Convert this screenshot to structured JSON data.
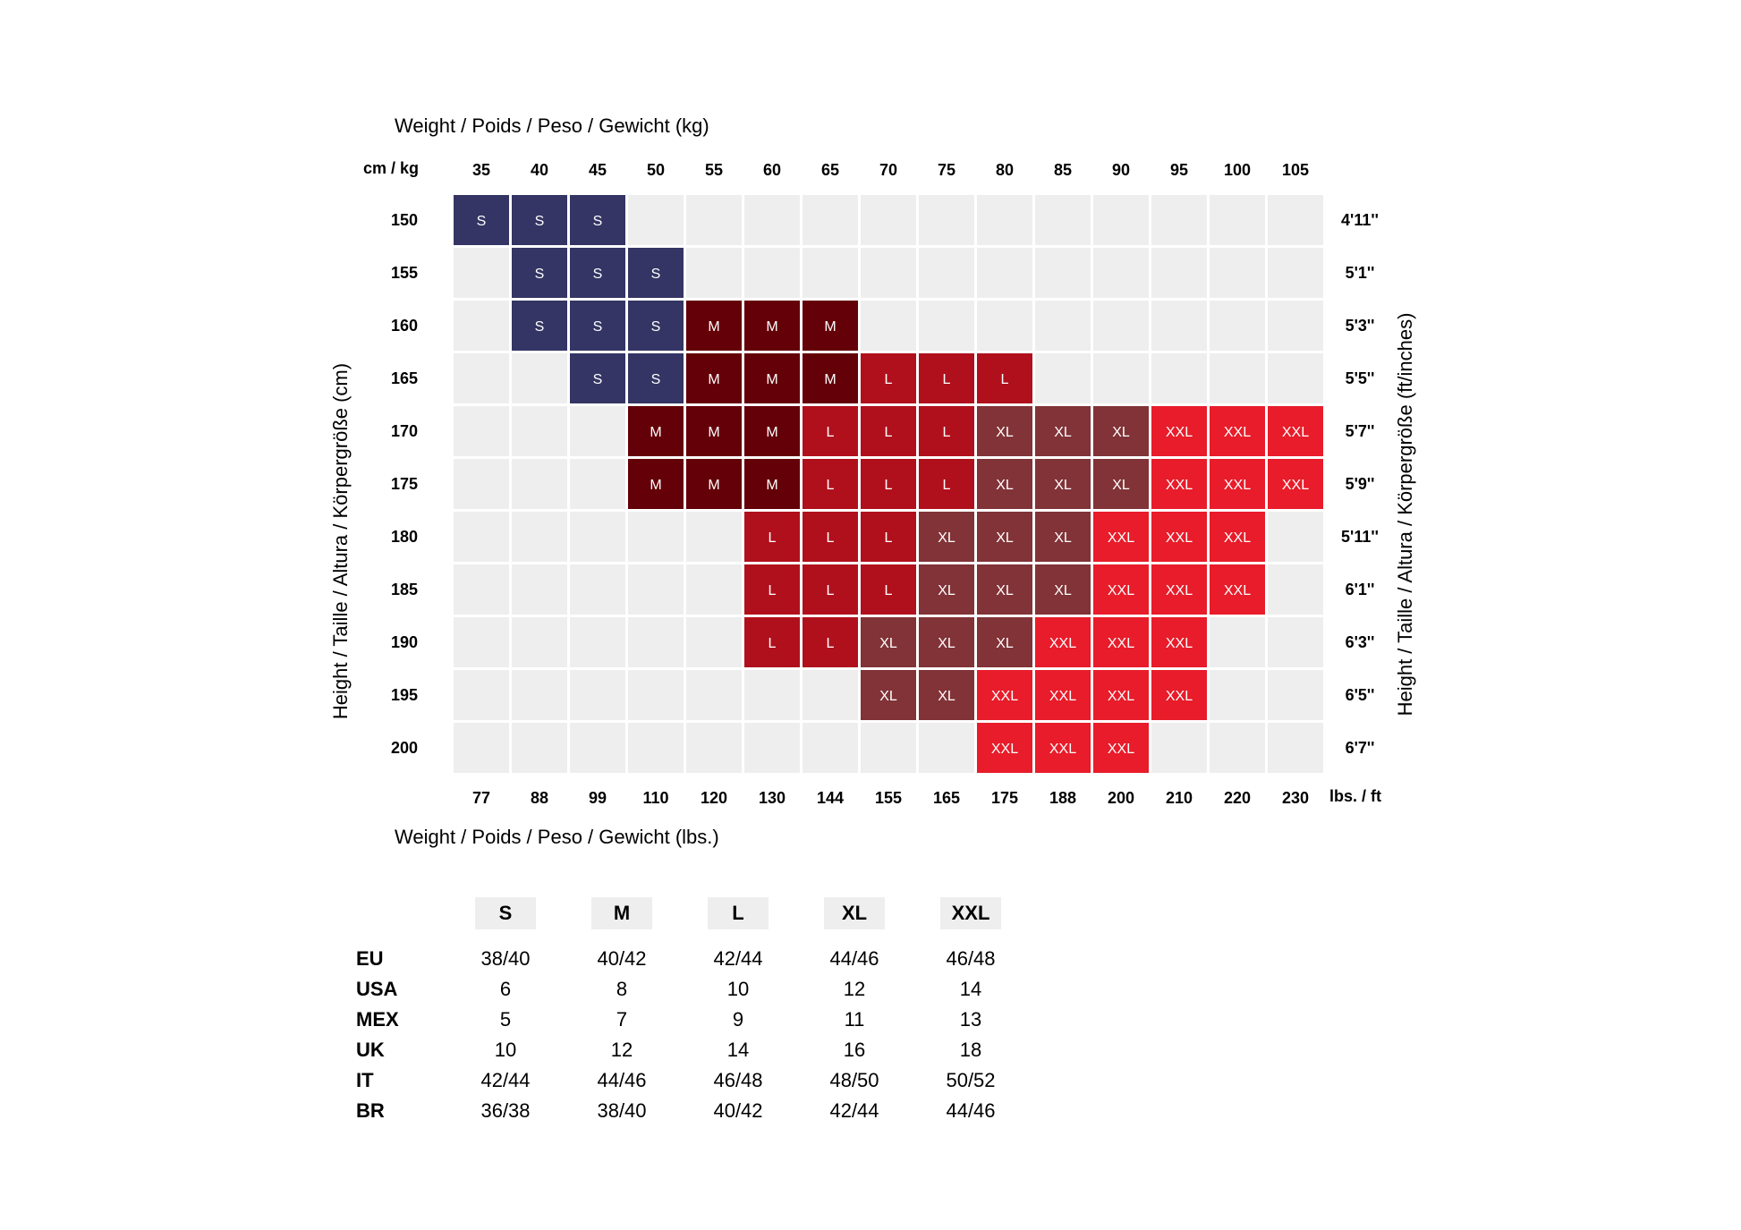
{
  "chart_data": {
    "type": "heatmap",
    "title_top": "Weight / Poids / Peso / Gewicht (kg)",
    "title_bottom": "Weight / Poids / Peso / Gewicht (lbs.)",
    "ylabel_left": "Height / Taille / Altura / Körpergröße (cm)",
    "ylabel_right": "Height / Taille / Altura / Körpergröße (ft/inches)",
    "corner_top": "cm / kg",
    "corner_bottom": "lbs. / ft",
    "x_kg": [
      "35",
      "40",
      "45",
      "50",
      "55",
      "60",
      "65",
      "70",
      "75",
      "80",
      "85",
      "90",
      "95",
      "100",
      "105"
    ],
    "x_lbs": [
      "77",
      "88",
      "99",
      "110",
      "120",
      "130",
      "144",
      "155",
      "165",
      "175",
      "188",
      "200",
      "210",
      "220",
      "230"
    ],
    "y_cm": [
      "150",
      "155",
      "160",
      "165",
      "170",
      "175",
      "180",
      "185",
      "190",
      "195",
      "200"
    ],
    "y_ft": [
      "4'11''",
      "5'1''",
      "5'3''",
      "5'5''",
      "5'7''",
      "5'9''",
      "5'11''",
      "6'1''",
      "6'3''",
      "6'5''",
      "6'7''"
    ],
    "grid": [
      [
        "S",
        "S",
        "S",
        "",
        "",
        "",
        "",
        "",
        "",
        "",
        "",
        "",
        "",
        "",
        ""
      ],
      [
        "",
        "S",
        "S",
        "S",
        "",
        "",
        "",
        "",
        "",
        "",
        "",
        "",
        "",
        "",
        ""
      ],
      [
        "",
        "S",
        "S",
        "S",
        "M",
        "M",
        "M",
        "",
        "",
        "",
        "",
        "",
        "",
        "",
        ""
      ],
      [
        "",
        "",
        "S",
        "S",
        "M",
        "M",
        "M",
        "L",
        "L",
        "L",
        "",
        "",
        "",
        "",
        ""
      ],
      [
        "",
        "",
        "",
        "M",
        "M",
        "M",
        "L",
        "L",
        "L",
        "XL",
        "XL",
        "XL",
        "XXL",
        "XXL",
        "XXL"
      ],
      [
        "",
        "",
        "",
        "M",
        "M",
        "M",
        "L",
        "L",
        "L",
        "XL",
        "XL",
        "XL",
        "XXL",
        "XXL",
        "XXL"
      ],
      [
        "",
        "",
        "",
        "",
        "",
        "L",
        "L",
        "L",
        "XL",
        "XL",
        "XL",
        "XXL",
        "XXL",
        "XXL",
        ""
      ],
      [
        "",
        "",
        "",
        "",
        "",
        "L",
        "L",
        "L",
        "XL",
        "XL",
        "XL",
        "XXL",
        "XXL",
        "XXL",
        ""
      ],
      [
        "",
        "",
        "",
        "",
        "",
        "L",
        "L",
        "XL",
        "XL",
        "XL",
        "XXL",
        "XXL",
        "XXL",
        "",
        ""
      ],
      [
        "",
        "",
        "",
        "",
        "",
        "",
        "",
        "XL",
        "XL",
        "XXL",
        "XXL",
        "XXL",
        "XXL",
        "",
        ""
      ],
      [
        "",
        "",
        "",
        "",
        "",
        "",
        "",
        "",
        "",
        "XXL",
        "XXL",
        "XXL",
        "",
        "",
        ""
      ]
    ],
    "colors": {
      "S": "#343564",
      "M": "#640008",
      "L": "#b0101c",
      "XL": "#813337",
      "XXL": "#e81c2a",
      "empty": "#eeeeee"
    }
  },
  "conversion": {
    "sizes": [
      "S",
      "M",
      "L",
      "XL",
      "XXL"
    ],
    "rows": [
      {
        "label": "EU",
        "values": [
          "38/40",
          "40/42",
          "42/44",
          "44/46",
          "46/48"
        ]
      },
      {
        "label": "USA",
        "values": [
          "6",
          "8",
          "10",
          "12",
          "14"
        ]
      },
      {
        "label": "MEX",
        "values": [
          "5",
          "7",
          "9",
          "11",
          "13"
        ]
      },
      {
        "label": "UK",
        "values": [
          "10",
          "12",
          "14",
          "16",
          "18"
        ]
      },
      {
        "label": "IT",
        "values": [
          "42/44",
          "44/46",
          "46/48",
          "48/50",
          "50/52"
        ]
      },
      {
        "label": "BR",
        "values": [
          "36/38",
          "38/40",
          "40/42",
          "42/44",
          "44/46"
        ]
      }
    ]
  }
}
